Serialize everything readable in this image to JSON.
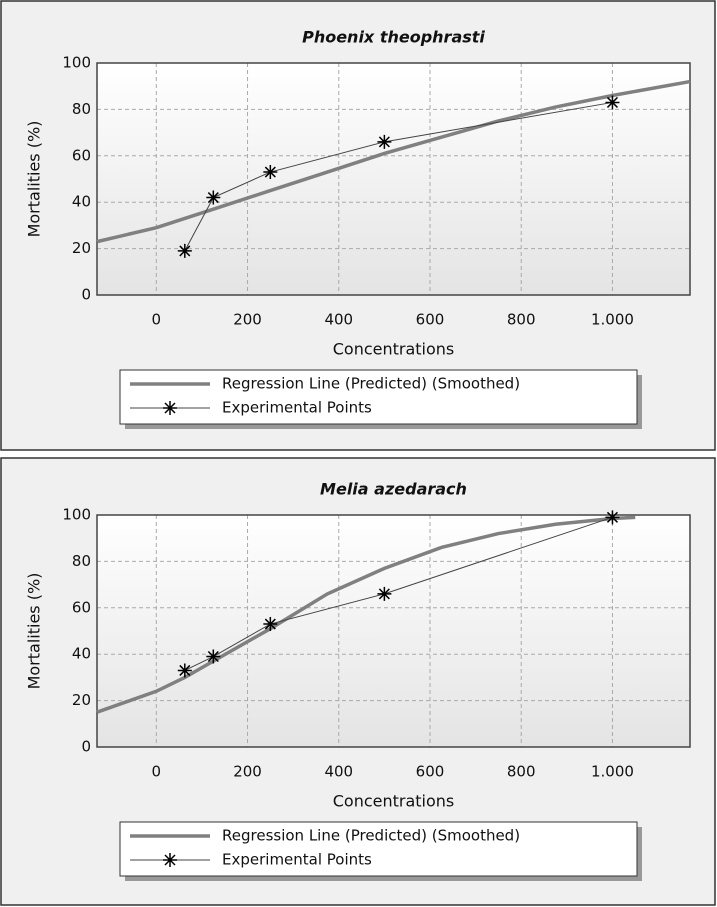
{
  "chart_data": [
    {
      "type": "line",
      "title": "Phoenix theophrasti",
      "xlabel": "Concentrations",
      "ylabel": "Mortalities (%)",
      "xlim": [
        -130,
        1170
      ],
      "ylim": [
        0,
        100
      ],
      "xticks": [
        0,
        200,
        400,
        600,
        800,
        {
          "value": 1000,
          "label": "1.000"
        }
      ],
      "yticks": [
        0,
        20,
        40,
        60,
        80,
        100
      ],
      "grid": true,
      "series": [
        {
          "name": "Regression Line (Predicted) (Smoothed)",
          "color": "#808080",
          "x": [
            -130,
            0,
            125,
            250,
            375,
            500,
            625,
            750,
            875,
            1000,
            1170
          ],
          "values": [
            23,
            29,
            37,
            45,
            53,
            61,
            68,
            75,
            81,
            86,
            92
          ]
        },
        {
          "name": "Experimental Points",
          "color": "#444444",
          "marker": "star",
          "x": [
            62.5,
            125,
            250,
            500,
            1000
          ],
          "values": [
            19,
            42,
            53,
            66,
            83
          ]
        }
      ]
    },
    {
      "type": "line",
      "title": "Melia azedarach",
      "xlabel": "Concentrations",
      "ylabel": "Mortalities (%)",
      "xlim": [
        -130,
        1170
      ],
      "ylim": [
        0,
        100
      ],
      "xticks": [
        0,
        200,
        400,
        600,
        800,
        {
          "value": 1000,
          "label": "1.000"
        }
      ],
      "yticks": [
        0,
        20,
        40,
        60,
        80,
        100
      ],
      "grid": true,
      "series": [
        {
          "name": "Regression Line (Predicted) (Smoothed)",
          "color": "#808080",
          "x": [
            -130,
            0,
            62.5,
            125,
            250,
            375,
            500,
            625,
            750,
            875,
            1000,
            1050
          ],
          "values": [
            15,
            24,
            30,
            37,
            51,
            66,
            77,
            86,
            92,
            96,
            98.5,
            99
          ]
        },
        {
          "name": "Experimental Points",
          "color": "#444444",
          "marker": "star",
          "x": [
            62.5,
            125,
            250,
            500,
            1000
          ],
          "values": [
            33,
            39,
            53,
            66,
            99
          ]
        }
      ]
    }
  ]
}
